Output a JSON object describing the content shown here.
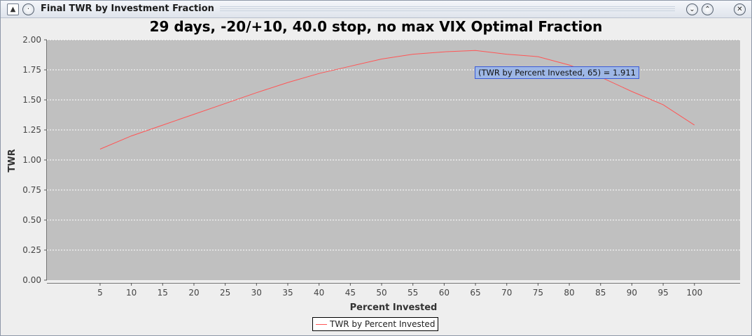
{
  "window": {
    "title": "Final TWR by Investment Fraction",
    "icons": [
      "java-app-icon",
      "window-menu-icon",
      "minimize-icon",
      "maximize-icon",
      "close-icon"
    ]
  },
  "chart_data": {
    "type": "line",
    "title": "29 days, -20/+10, 40.0 stop, no max VIX Optimal Fraction",
    "xlabel": "Percent Invested",
    "ylabel": "TWR",
    "x": [
      5,
      10,
      15,
      20,
      25,
      30,
      35,
      40,
      45,
      50,
      55,
      60,
      65,
      70,
      75,
      80,
      85,
      90,
      95,
      100
    ],
    "series": [
      {
        "name": "TWR by Percent Invested",
        "color": "#ff5555",
        "values": [
          1.09,
          1.2,
          1.29,
          1.38,
          1.47,
          1.56,
          1.645,
          1.72,
          1.78,
          1.84,
          1.88,
          1.9,
          1.911,
          1.88,
          1.86,
          1.79,
          1.69,
          1.57,
          1.46,
          1.29
        ]
      }
    ],
    "xticks": [
      "5",
      "10",
      "15",
      "20",
      "25",
      "30",
      "35",
      "40",
      "45",
      "50",
      "55",
      "60",
      "65",
      "70",
      "75",
      "80",
      "85",
      "90",
      "95",
      "100"
    ],
    "yticks": [
      "0.00",
      "0.25",
      "0.50",
      "0.75",
      "1.00",
      "1.25",
      "1.50",
      "1.75",
      "2.00"
    ],
    "ylim": [
      0,
      2.0
    ],
    "xlim": [
      -3.5,
      107.3
    ],
    "grid": true,
    "plot_background": "#c0c0c0",
    "legend": {
      "placement": "bottom",
      "label": "TWR by Percent Invested"
    },
    "tooltip": "(TWR by Percent Invested, 65) = 1.911"
  }
}
